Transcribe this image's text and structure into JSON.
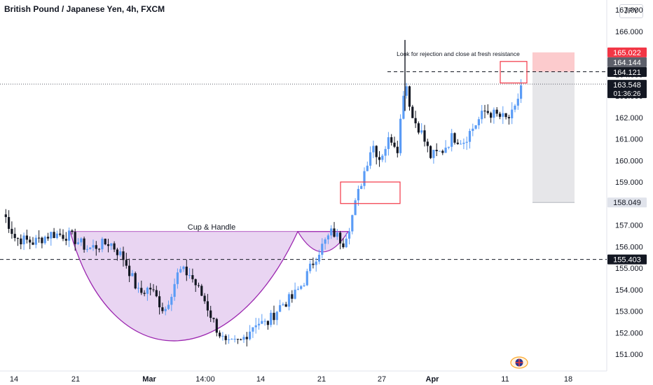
{
  "header": {
    "title": "British Pound / Japanese Yen, 4h, FXCM",
    "currency": "JPY"
  },
  "annotations": {
    "pattern_label": "Cup & Handle",
    "note": "Look for rejection and close at fresh resistance"
  },
  "price_tags": [
    {
      "label": "165.022",
      "price": 165.022,
      "color": "#f23645"
    },
    {
      "label": "164.144",
      "price": 164.144,
      "color": "#5d606b"
    },
    {
      "label": "164.121",
      "price": 164.121,
      "color": "#131722"
    },
    {
      "label": "163.548",
      "price": 163.548,
      "color": "#131722"
    },
    {
      "label": "158.049",
      "price": 158.049,
      "color": "#e0e3eb"
    },
    {
      "label": "155.403",
      "price": 155.403,
      "color": "#131722"
    }
  ],
  "countdown": "01:36:26",
  "colors": {
    "up": "#5b9cf6",
    "down": "#131722",
    "cup_fill": "#e9d5f2",
    "cup_stroke": "#9c27b0",
    "box_stroke": "#f23645",
    "target_zone": "#fccbcd",
    "stop_zone": "#e6e6e9"
  },
  "chart_data": {
    "type": "candlestick",
    "title": "British Pound / Japanese Yen, 4h, FXCM",
    "ylim": [
      150.6,
      166.9
    ],
    "y_ticks": [
      "151.000",
      "152.000",
      "153.000",
      "154.000",
      "155.000",
      "156.000",
      "157.000",
      "158.000",
      "159.000",
      "160.000",
      "161.000",
      "162.000",
      "163.000",
      "164.000",
      "165.000",
      "166.000",
      "167.000"
    ],
    "x_ticks": [
      "14",
      "21",
      "Mar",
      "14:00",
      "14",
      "21",
      "27",
      "Apr",
      "11",
      "18"
    ],
    "grid": false,
    "levels": {
      "support": 155.403,
      "resistance": 164.121,
      "last_price": 163.548,
      "high_level": 164.144
    },
    "price_path": [
      [
        157.5,
        0
      ],
      [
        156.4,
        3
      ],
      [
        156.2,
        8
      ],
      [
        156.6,
        13
      ],
      [
        156.5,
        18
      ],
      [
        155.9,
        23
      ],
      [
        156.2,
        29
      ],
      [
        155.4,
        33
      ],
      [
        153.8,
        37
      ],
      [
        154.1,
        40
      ],
      [
        153.0,
        44
      ],
      [
        154.9,
        48
      ],
      [
        154.7,
        51
      ],
      [
        153.5,
        55
      ],
      [
        152.3,
        58
      ],
      [
        151.4,
        61
      ],
      [
        151.6,
        65
      ],
      [
        152.5,
        69
      ],
      [
        152.4,
        72
      ],
      [
        153.3,
        76
      ],
      [
        153.6,
        79
      ],
      [
        154.3,
        82
      ],
      [
        155.7,
        86
      ],
      [
        156.7,
        90
      ],
      [
        156.2,
        93
      ],
      [
        157.1,
        95
      ],
      [
        159.0,
        98
      ],
      [
        160.8,
        101
      ],
      [
        160.1,
        103
      ],
      [
        161.1,
        106
      ],
      [
        160.6,
        108
      ],
      [
        163.9,
        110
      ],
      [
        162.0,
        112
      ],
      [
        161.5,
        114
      ],
      [
        160.2,
        117
      ],
      [
        160.4,
        120
      ],
      [
        161.1,
        123
      ],
      [
        160.9,
        126
      ],
      [
        161.6,
        129
      ],
      [
        162.3,
        132
      ],
      [
        162.1,
        135
      ],
      [
        161.9,
        138
      ],
      [
        162.2,
        140
      ],
      [
        163.6,
        142
      ]
    ]
  }
}
